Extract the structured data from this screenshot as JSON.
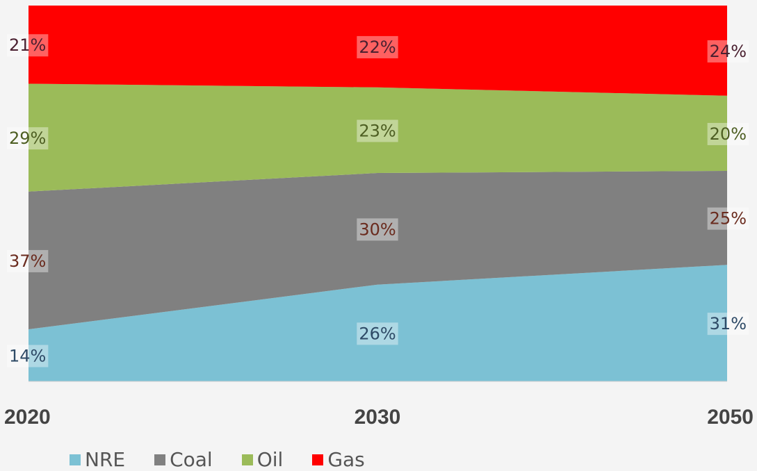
{
  "chart_data": {
    "type": "area",
    "stacked": "percent",
    "categories": [
      "2020",
      "2030",
      "2050"
    ],
    "series": [
      {
        "name": "NRE",
        "color": "#7cc1d4",
        "values": [
          14,
          26,
          31
        ],
        "labels": [
          "14%",
          "26%",
          "31%"
        ],
        "label_color": "#2e4a66"
      },
      {
        "name": "Coal",
        "color": "#808080",
        "values": [
          37,
          30,
          25
        ],
        "labels": [
          "37%",
          "30%",
          "25%"
        ],
        "label_color": "#6a2b1e"
      },
      {
        "name": "Oil",
        "color": "#9bbb59",
        "values": [
          29,
          23,
          20
        ],
        "labels": [
          "29%",
          "23%",
          "20%"
        ],
        "label_color": "#4d5e22"
      },
      {
        "name": "Gas",
        "color": "#ff0000",
        "values": [
          21,
          22,
          24
        ],
        "labels": [
          "21%",
          "22%",
          "24%"
        ],
        "label_color": "#4a2030"
      }
    ],
    "ylim": [
      0,
      100
    ],
    "legend_position": "bottom",
    "grid": false
  }
}
